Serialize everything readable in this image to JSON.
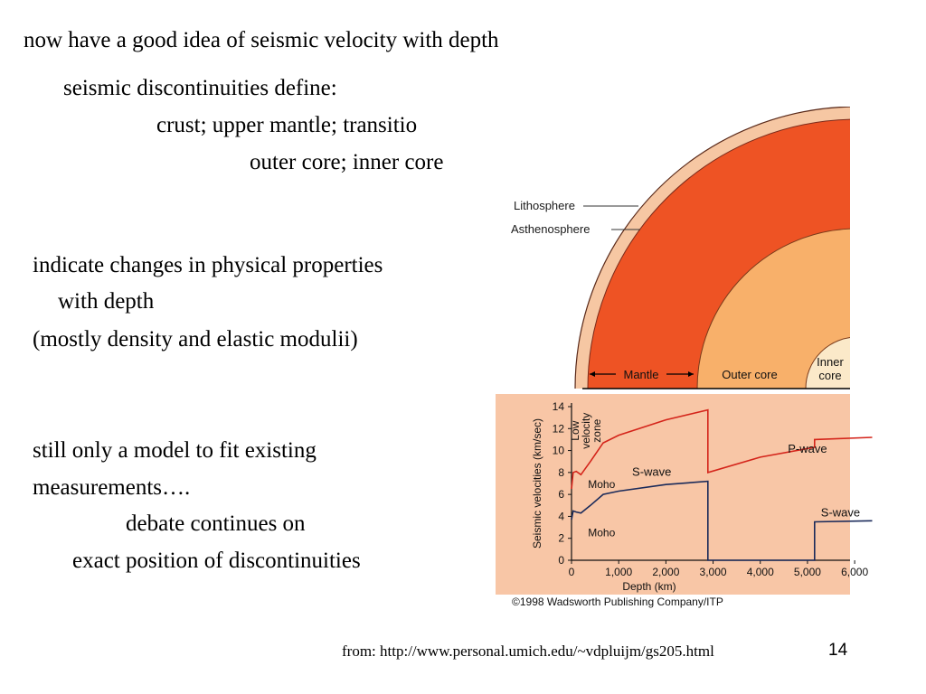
{
  "slide": {
    "title": "now have a good idea of seismic velocity with depth",
    "disc_intro": "seismic discontinuities define:",
    "disc_line1": "crust; upper mantle; transitio",
    "disc_line2": "outer core; inner core",
    "indicate_line1": "indicate changes in physical properties",
    "indicate_line2": "with depth",
    "indicate_line3": "(mostly density and elastic modulii)",
    "model_line1": "still only a model to fit existing",
    "model_line2": "measurements….",
    "debate_line1": "debate continues on",
    "debate_line2": "exact position of discontinuities",
    "footer_source": "from: http://www.personal.umich.edu/~vdpluijm/gs205.html",
    "page_number": "14"
  },
  "figure": {
    "earth_labels": {
      "lithosphere": "Lithosphere",
      "asthenosphere": "Asthenosphere",
      "mantle": "Mantle",
      "outer_core": "Outer core",
      "inner_core_1": "Inner",
      "inner_core_2": "core"
    },
    "colors": {
      "crust": "#f6c7a3",
      "mantle": "#ee5324",
      "outer_core": "#f8b06a",
      "inner_core": "#fbe9c9",
      "plot_bg": "#f8c6a6",
      "p_wave": "#d4241a",
      "s_wave": "#1a2a5a"
    },
    "copyright": "©1998 Wadsworth Publishing Company/ITP"
  },
  "chart_data": {
    "type": "line",
    "xlabel": "Depth (km)",
    "ylabel": "Seismic velocities (km/sec)",
    "xlim": [
      0,
      6400
    ],
    "ylim": [
      0,
      14
    ],
    "x_ticks": [
      "0",
      "1,000",
      "2,000",
      "3,000",
      "4,000",
      "5,000",
      "6,000"
    ],
    "y_ticks": [
      "0",
      "2",
      "4",
      "6",
      "8",
      "10",
      "12",
      "14"
    ],
    "annotations": {
      "low_velocity_zone_1": "Low",
      "low_velocity_zone_2": "velocity",
      "low_velocity_zone_3": "zone",
      "moho_p": "Moho",
      "moho_s": "Moho"
    },
    "series": [
      {
        "name": "P-wave",
        "points": [
          [
            0,
            6.5
          ],
          [
            35,
            8.0
          ],
          [
            100,
            8.1
          ],
          [
            200,
            7.8
          ],
          [
            400,
            9.0
          ],
          [
            670,
            10.7
          ],
          [
            1000,
            11.4
          ],
          [
            2000,
            12.8
          ],
          [
            2890,
            13.7
          ],
          [
            2890,
            8.0
          ],
          [
            4000,
            9.4
          ],
          [
            5150,
            10.3
          ],
          [
            5150,
            11.0
          ],
          [
            6371,
            11.2
          ]
        ]
      },
      {
        "name": "S-wave",
        "points": [
          [
            0,
            3.7
          ],
          [
            35,
            4.5
          ],
          [
            100,
            4.4
          ],
          [
            200,
            4.3
          ],
          [
            400,
            5.0
          ],
          [
            670,
            6.0
          ],
          [
            1000,
            6.3
          ],
          [
            2000,
            6.9
          ],
          [
            2890,
            7.2
          ],
          [
            2890,
            0
          ],
          [
            5150,
            0
          ],
          [
            5150,
            3.5
          ],
          [
            6371,
            3.6
          ]
        ]
      }
    ]
  }
}
